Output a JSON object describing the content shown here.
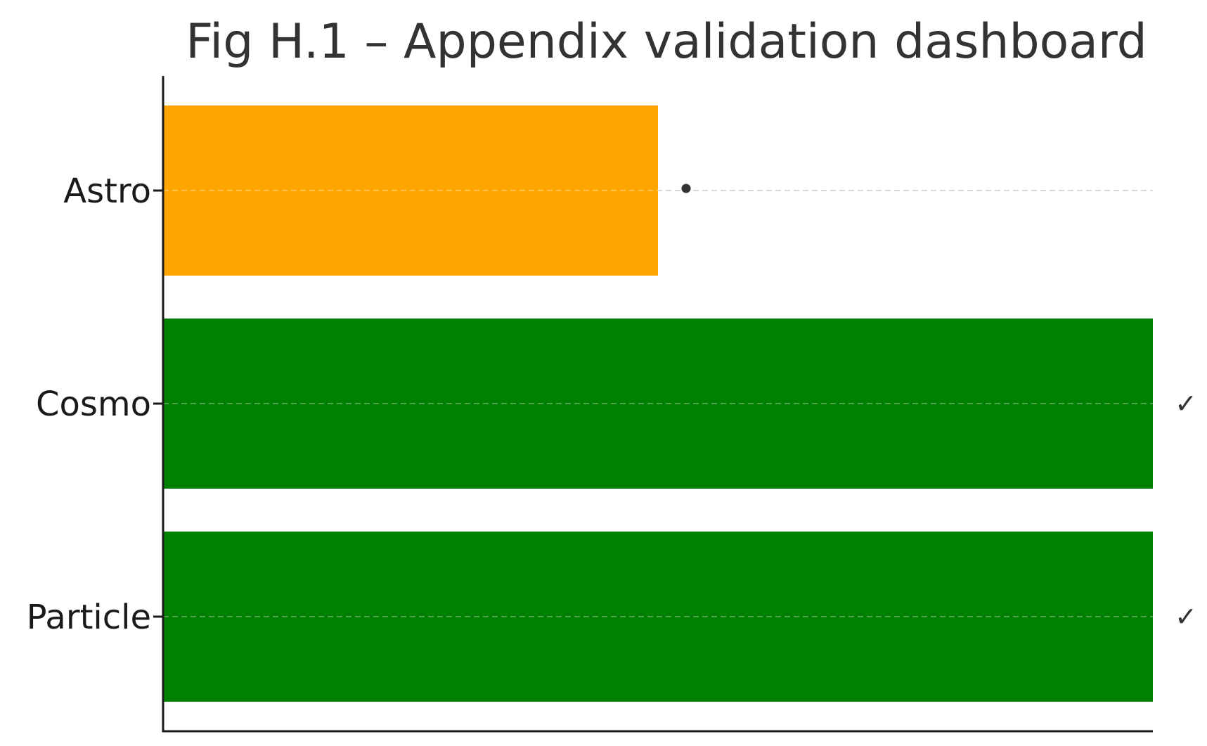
{
  "chart_data": {
    "type": "bar",
    "orientation": "horizontal",
    "title": "Fig H.1 – Appendix validation dashboard",
    "xlabel": "",
    "ylabel": "",
    "categories": [
      "Astro",
      "Cosmo",
      "Particle"
    ],
    "values": [
      0.5,
      1.0,
      1.0
    ],
    "xlim": [
      0,
      1.0
    ],
    "bar_colors": [
      "#ffa500",
      "#008000",
      "#008000"
    ],
    "status_markers": [
      "•",
      "✓",
      "✓"
    ],
    "grid": "horizontal dashed at category centers",
    "legend": "none"
  },
  "colors": {
    "axis": "#1a1a1a",
    "grid": "#c8c8c8",
    "marker": "#333333"
  }
}
